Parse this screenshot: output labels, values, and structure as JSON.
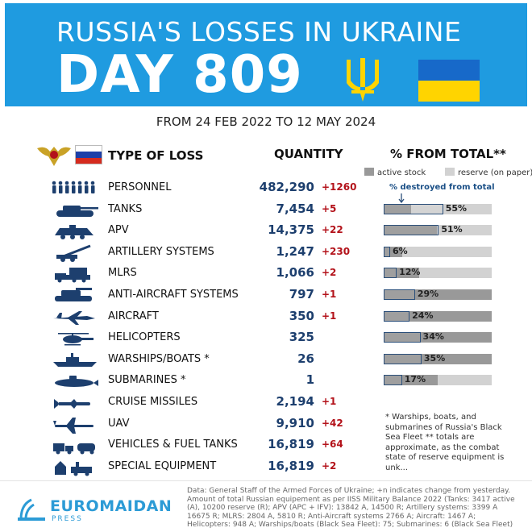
{
  "header": {
    "title": "RUSSIA'S LOSSES IN UKRAINE",
    "day_label": "DAY 809"
  },
  "date_range": "FROM 24 FEB 2022 TO 12 MAY 2024",
  "columns": {
    "type": "TYPE OF LOSS",
    "quantity": "QUANTITY",
    "percent": "% FROM TOTAL**"
  },
  "legend": {
    "active": "active stock",
    "reserve": "reserve (on paper)",
    "destroyed": "% destroyed from total"
  },
  "colors": {
    "header_bg": "#1f9be0",
    "ua_blue": "#1769c9",
    "ua_yellow": "#ffd400",
    "qty_text": "#1d3f6e",
    "change_text": "#b3121a",
    "active_stock": "#999999",
    "reserve_stock": "#d2d2d2",
    "icon": "#1d3f6e"
  },
  "chart_data": {
    "type": "table",
    "rows": [
      {
        "icon": "personnel-icon",
        "label": "PERSONNEL",
        "quantity": "482,290",
        "change": "+1260",
        "percent_label": "",
        "active_fraction": null,
        "reserve_fraction": null,
        "destroyed_fraction": null
      },
      {
        "icon": "tank-icon",
        "label": "TANKS",
        "quantity": "7,454",
        "change": "+5",
        "percent_label": "55%",
        "active_fraction": 0.25,
        "reserve_fraction": 0.75,
        "destroyed_fraction": 0.55
      },
      {
        "icon": "apv-icon",
        "label": "APV",
        "quantity": "14,375",
        "change": "+22",
        "percent_label": "51%",
        "active_fraction": 0.49,
        "reserve_fraction": 0.51,
        "destroyed_fraction": 0.51
      },
      {
        "icon": "artillery-icon",
        "label": "ARTILLERY SYSTEMS",
        "quantity": "1,247",
        "change": "+230",
        "percent_label": "6%",
        "active_fraction": 0.17,
        "reserve_fraction": 0.83,
        "destroyed_fraction": 0.06
      },
      {
        "icon": "mlrs-icon",
        "label": "MLRS",
        "quantity": "1,066",
        "change": "+2",
        "percent_label": "12%",
        "active_fraction": 0.33,
        "reserve_fraction": 0.67,
        "destroyed_fraction": 0.12
      },
      {
        "icon": "anti-aircraft-icon",
        "label": "ANTI-AIRCRAFT SYSTEMS",
        "quantity": "797",
        "change": "+1",
        "percent_label": "29%",
        "active_fraction": 1.0,
        "reserve_fraction": 0.0,
        "destroyed_fraction": 0.29
      },
      {
        "icon": "aircraft-icon",
        "label": "AIRCRAFT",
        "quantity": "350",
        "change": "+1",
        "percent_label": "24%",
        "active_fraction": 1.0,
        "reserve_fraction": 0.0,
        "destroyed_fraction": 0.24
      },
      {
        "icon": "helicopter-icon",
        "label": "HELICOPTERS",
        "quantity": "325",
        "change": "",
        "percent_label": "34%",
        "active_fraction": 1.0,
        "reserve_fraction": 0.0,
        "destroyed_fraction": 0.34
      },
      {
        "icon": "warship-icon",
        "label": "WARSHIPS/BOATS *",
        "quantity": "26",
        "change": "",
        "percent_label": "35%",
        "active_fraction": 1.0,
        "reserve_fraction": 0.0,
        "destroyed_fraction": 0.35
      },
      {
        "icon": "submarine-icon",
        "label": "SUBMARINES *",
        "quantity": "1",
        "change": "",
        "percent_label": "17%",
        "active_fraction": 0.5,
        "reserve_fraction": 0.5,
        "destroyed_fraction": 0.17
      },
      {
        "icon": "cruise-missile-icon",
        "label": "CRUISE MISSILES",
        "quantity": "2,194",
        "change": "+1",
        "percent_label": "",
        "active_fraction": null,
        "reserve_fraction": null,
        "destroyed_fraction": null
      },
      {
        "icon": "uav-icon",
        "label": "UAV",
        "quantity": "9,910",
        "change": "+42",
        "percent_label": "",
        "active_fraction": null,
        "reserve_fraction": null,
        "destroyed_fraction": null
      },
      {
        "icon": "vehicles-icon",
        "label": "VEHICLES & FUEL TANKS",
        "quantity": "16,819",
        "change": "+64",
        "percent_label": "",
        "active_fraction": null,
        "reserve_fraction": null,
        "destroyed_fraction": null
      },
      {
        "icon": "special-equipment-icon",
        "label": "SPECIAL EQUIPMENT",
        "quantity": "16,819",
        "change": "+2",
        "percent_label": "",
        "active_fraction": null,
        "reserve_fraction": null,
        "destroyed_fraction": null
      }
    ]
  },
  "footnote": "* Warships, boats, and submarines of Russia's Black Sea Fleet ** totals are approximate, as the combat state of reserve equipment is unk...",
  "footer": {
    "brand": "EUROMAIDAN",
    "brand_sub": "PRESS",
    "source": "Data: General Staff of the Armed Forces of Ukraine; +n indicates change from yesterday. Amount of total Russian equipement as per IISS Military Balance 2022 (Tanks: 3417 active (A), 10200 reserve (R); APV (APC + IFV): 13842 A, 14500 R; Artillery systems: 3399 A 16675 R; MLRS: 2804 A, 5810 R; Anti-Aircraft systems 2766 A; Aircraft: 1467 A; Helicopters: 948 A; Warships/boats (Black Sea Fleet): 75; Submarines: 6 (Black Sea Fleet)"
  }
}
